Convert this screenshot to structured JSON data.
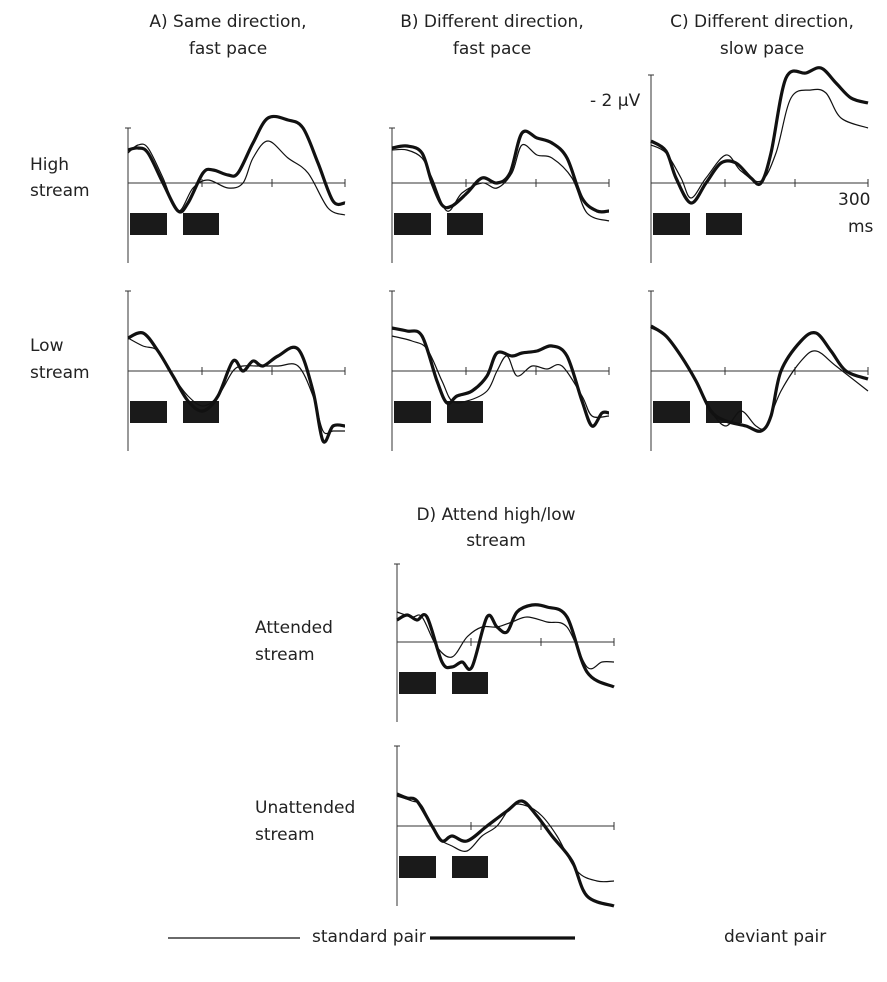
{
  "panels": [
    {
      "title": [
        "A) Same direction,",
        "fast pace"
      ]
    },
    {
      "title": [
        "B) Different direction,",
        "fast pace"
      ]
    },
    {
      "title": [
        "C) Different direction,",
        "slow pace"
      ]
    }
  ],
  "rows": [
    [
      "High",
      "stream"
    ],
    [
      "Low",
      "stream"
    ]
  ],
  "panel_d": {
    "title": [
      "D) Attend high/low",
      "stream"
    ],
    "rows": [
      [
        "Attended",
        "stream"
      ],
      [
        "Unattended",
        "stream"
      ]
    ]
  },
  "scale": {
    "amplitude": "- 2 µV",
    "time": [
      "300",
      "ms"
    ]
  },
  "legend": [
    "standard pair",
    "deviant pair"
  ]
}
